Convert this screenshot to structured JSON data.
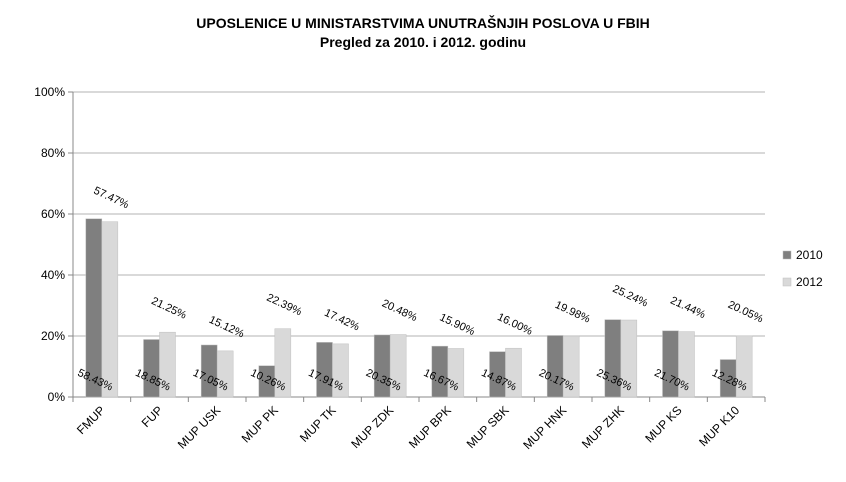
{
  "chart_data": {
    "type": "bar",
    "title": "UPOSLENICE U MINISTARSTVIMA  UNUTRAŠNJIH POSLOVA U FBIH",
    "subtitle": "Pregled za 2010. i 2012. godinu",
    "categories": [
      "FMUP",
      "FUP",
      "MUP USK",
      "MUP PK",
      "MUP TK",
      "MUP ZDK",
      "MUP BPK",
      "MUP SBK",
      "MUP HNK",
      "MUP ZHK",
      "MUP KS",
      "MUP K10"
    ],
    "series": [
      {
        "name": "2010",
        "values": [
          58.43,
          18.85,
          17.05,
          10.26,
          17.91,
          20.35,
          16.67,
          14.87,
          20.17,
          25.36,
          21.7,
          12.28
        ],
        "labels": [
          "58.43%",
          "18.85%",
          "17.05%",
          "10.26%",
          "17.91%",
          "20.35%",
          "16.67%",
          "14.87%",
          "20.17%",
          "25.36%",
          "21.70%",
          "12.28%"
        ],
        "color": "#7f7f7f"
      },
      {
        "name": "2012",
        "values": [
          57.47,
          21.25,
          15.12,
          22.39,
          17.42,
          20.48,
          15.9,
          16.0,
          19.98,
          25.24,
          21.44,
          20.05
        ],
        "labels": [
          "57.47%",
          "21.25%",
          "15.12%",
          "22.39%",
          "17.42%",
          "20.48%",
          "15.90%",
          "16.00%",
          "19.98%",
          "25.24%",
          "21.44%",
          "20.05%"
        ],
        "color": "#d9d9d9"
      }
    ],
    "yticks": [
      "0%",
      "20%",
      "40%",
      "60%",
      "80%",
      "100%"
    ],
    "ylim": [
      0,
      100
    ],
    "grid": true,
    "legend": "right"
  }
}
